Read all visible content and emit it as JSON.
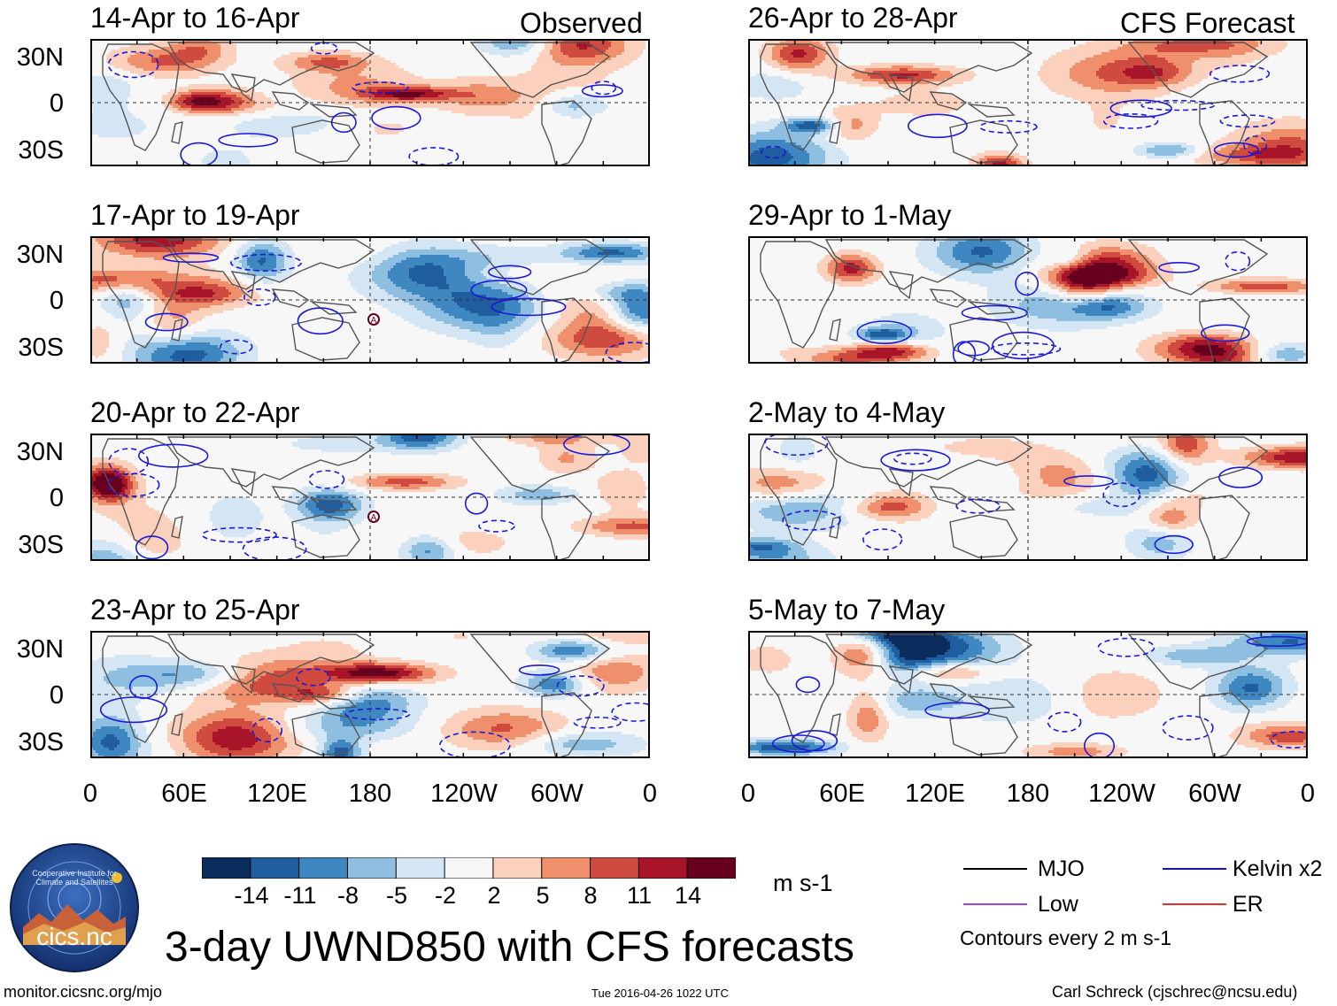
{
  "title": "3-day UWND850 with CFS forecasts",
  "headers": {
    "observed": "Observed",
    "forecast": "CFS Forecast"
  },
  "panels": {
    "observed": [
      {
        "period": "14-Apr to 16-Apr"
      },
      {
        "period": "17-Apr to 19-Apr",
        "marker": "A"
      },
      {
        "period": "20-Apr to 22-Apr",
        "marker": "A"
      },
      {
        "period": "23-Apr to 25-Apr"
      }
    ],
    "forecast": [
      {
        "period": "26-Apr to 28-Apr"
      },
      {
        "period": "29-Apr to 1-May"
      },
      {
        "period": "2-May to 4-May"
      },
      {
        "period": "5-May to 7-May"
      }
    ]
  },
  "lat_labels": [
    "30N",
    "0",
    "30S"
  ],
  "lon_labels": [
    "0",
    "60E",
    "120E",
    "180",
    "120W",
    "60W",
    "0"
  ],
  "colorbar": {
    "unit": "m s-1",
    "ticks": [
      "-14",
      "-11",
      "-8",
      "-5",
      "-2",
      "2",
      "5",
      "8",
      "11",
      "14"
    ],
    "colors": [
      "#0a2d5e",
      "#1f5d9e",
      "#3f87c0",
      "#8fbfe0",
      "#d4e6f4",
      "#f7f7f7",
      "#fbd0bc",
      "#f08f6c",
      "#cf4a3f",
      "#a8142a",
      "#67001f"
    ]
  },
  "legend": {
    "items": [
      {
        "label": "MJO",
        "color": "#000000"
      },
      {
        "label": "Kelvin x2",
        "color": "#1010e0"
      },
      {
        "label": "Low",
        "color": "#a040e0"
      },
      {
        "label": "ER",
        "color": "#e03030"
      }
    ],
    "note": "Contours every 2 m s-1"
  },
  "logo": {
    "text": "cics.nc",
    "ring_text": "Cooperative Institute for Climate and Satellites"
  },
  "footer": {
    "left": "monitor.cicsnc.org/mjo",
    "center": "Tue 2016-04-26 1022 UTC",
    "right": "Carl Schreck (cjschrec@ncsu.edu)"
  }
}
